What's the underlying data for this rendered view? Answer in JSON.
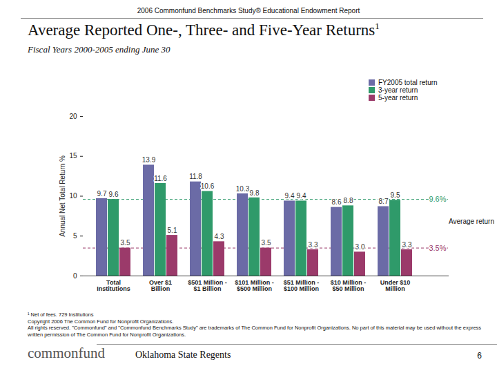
{
  "chart_data": {
    "type": "bar",
    "header": "2006 Commonfund Benchmarks Study® Educational Endowment Report",
    "title": "Average Reported One-, Three- and Five-Year Returns",
    "title_note": "1",
    "subtitle": "Fiscal Years 2000-2005 ending June 30",
    "y_label": "Annual Net Total Return %",
    "categories": [
      "Total Institutions",
      "Over $1 Billion",
      "$501 Million - $1 Billion",
      "$101 Million - $500 Million",
      "$51 Million - $100 Million",
      "$10 Million - $50 Million",
      "Under $10 Million"
    ],
    "series": [
      {
        "name": "FY2005 total return",
        "color": "#6b6ba6",
        "values": [
          9.7,
          13.9,
          11.8,
          10.3,
          9.4,
          8.6,
          8.7
        ],
        "value_labels": [
          "9.7",
          "13.9",
          "11.8",
          "10.3",
          "9.4",
          "8.6",
          "8.7"
        ]
      },
      {
        "name": "3-year return",
        "color": "#2f9a6a",
        "values": [
          9.6,
          11.6,
          10.6,
          9.8,
          9.4,
          8.8,
          9.5
        ],
        "value_labels": [
          "9.6",
          "11.6",
          "10.6",
          "9.8",
          "9.4",
          "8.8",
          "9.5"
        ]
      },
      {
        "name": "5-year return",
        "color": "#9b3a6a",
        "values": [
          3.5,
          5.1,
          4.3,
          3.5,
          3.3,
          3.0,
          3.3
        ],
        "value_labels": [
          "3.5",
          "5.1",
          "4.3",
          "3.5",
          "3.3",
          "3.0",
          "3.3"
        ]
      }
    ],
    "ylim": [
      0,
      20
    ],
    "yticks": [
      0,
      5,
      10,
      15,
      20
    ],
    "grid": false,
    "data_labels": true,
    "legend": "top-right",
    "reference_lines": [
      {
        "value": 9.6,
        "label": "9.6%",
        "color": "#2f9a6a"
      },
      {
        "value": 3.5,
        "label": "3.5%",
        "color": "#9b3a6a"
      }
    ],
    "reference_note": "Average return",
    "footnotes": [
      "¹ Net of fees. 729 Institutions",
      "Copyright 2006 The Common Fund for Nonprofit Organizations.",
      "All rights reserved. \"Commonfund\" and \"Commonfund Benchmarks Study\" are trademarks of The Common Fund for Nonprofit Organizations. No part of this material may be used without the express written permission of The Common Fund for Nonprofit Organizations."
    ],
    "footer_logo": "commonfund",
    "footer_center": "Oklahoma State Regents",
    "page_number": "6"
  }
}
